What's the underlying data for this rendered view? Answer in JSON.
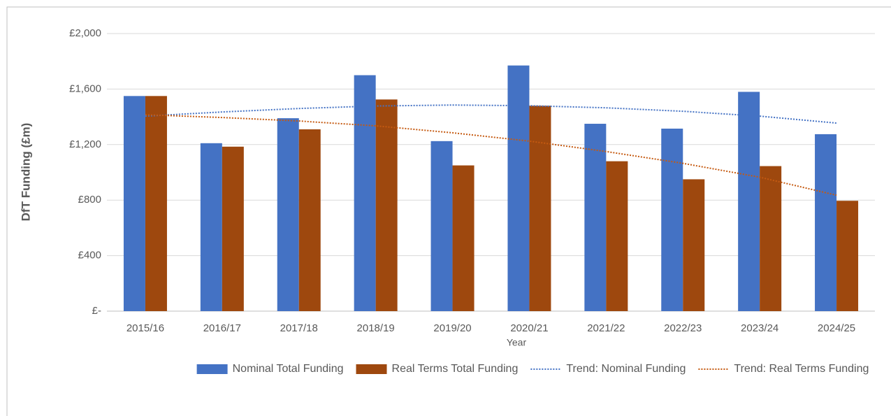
{
  "chart_data": {
    "type": "bar",
    "x_label": "Year",
    "y_label": "DfT Funding (£m)",
    "categories": [
      "2015/16",
      "2016/17",
      "2017/18",
      "2018/19",
      "2019/20",
      "2020/21",
      "2021/22",
      "2022/23",
      "2023/24",
      "2024/25"
    ],
    "series": [
      {
        "name": "Nominal Total Funding",
        "type": "bar",
        "color": "#4472c4",
        "values": [
          1550,
          1210,
          1390,
          1700,
          1225,
          1770,
          1350,
          1315,
          1580,
          1275
        ]
      },
      {
        "name": "Real Terms Total Funding",
        "type": "bar",
        "color": "#9e480e",
        "values": [
          1550,
          1185,
          1310,
          1525,
          1050,
          1480,
          1080,
          950,
          1045,
          795
        ]
      },
      {
        "name": "Trend: Nominal Funding",
        "type": "line",
        "dashed": true,
        "color": "#4472c4",
        "values": [
          1405,
          1435,
          1460,
          1478,
          1485,
          1480,
          1465,
          1440,
          1405,
          1355
        ]
      },
      {
        "name": "Trend: Real Terms Funding",
        "type": "line",
        "dashed": true,
        "color": "#c55a11",
        "values": [
          1415,
          1395,
          1370,
          1335,
          1285,
          1225,
          1150,
          1065,
          965,
          835
        ]
      }
    ],
    "ylim": [
      0,
      2000
    ],
    "yticks": [
      {
        "value": 0,
        "label": "£-"
      },
      {
        "value": 400,
        "label": "£400"
      },
      {
        "value": 800,
        "label": "£800"
      },
      {
        "value": 1200,
        "label": "£1,200"
      },
      {
        "value": 1600,
        "label": "£1,600"
      },
      {
        "value": 2000,
        "label": "£2,000"
      }
    ],
    "grid": true,
    "legend": "bottom"
  }
}
